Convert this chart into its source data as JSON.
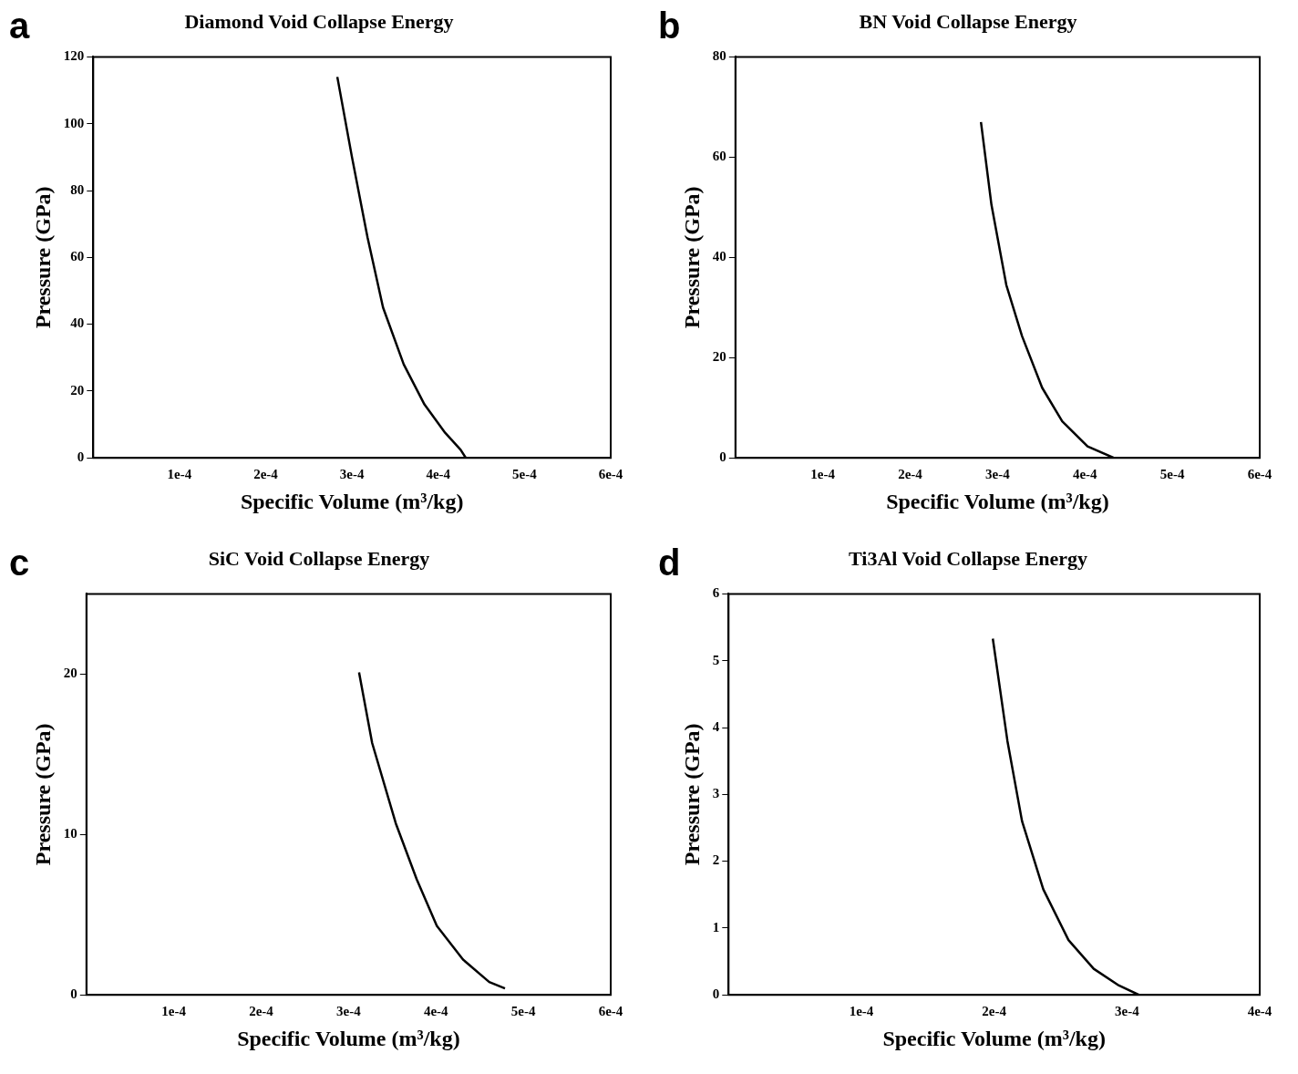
{
  "chart_data": [
    {
      "type": "line",
      "title": "Diamond Void Collapse Energy",
      "xlabel": "Specific Volume (m³/kg)",
      "ylabel": "Pressure (GPa)",
      "annotations": [
        "a"
      ],
      "grid": false,
      "legend": false,
      "marker": "none",
      "line_style": "solid",
      "xlim": [
        0,
        0.0006
      ],
      "xticks": [
        {
          "value": 0,
          "label": null
        },
        {
          "value": 0.0001,
          "label": "1e-4"
        },
        {
          "value": 0.0002,
          "label": "2e-4"
        },
        {
          "value": 0.0003,
          "label": "3e-4"
        },
        {
          "value": 0.0004,
          "label": "4e-4"
        },
        {
          "value": 0.0005,
          "label": "5e-4"
        },
        {
          "value": 0.0006,
          "label": "6e-4"
        }
      ],
      "ylim": [
        0,
        120
      ],
      "yticks": [
        0,
        20,
        40,
        60,
        80,
        100,
        120
      ],
      "series": [
        {
          "color": "#000000",
          "x": [
            0.000283,
            0.0003,
            0.000318,
            0.000336,
            0.00036,
            0.000384,
            0.000408,
            0.000426,
            0.000432
          ],
          "values": [
            114,
            90,
            66,
            45,
            28,
            16,
            7.5,
            2.4,
            0
          ]
        }
      ]
    },
    {
      "type": "line",
      "title": "BN Void Collapse Energy",
      "xlabel": "Specific Volume (m³/kg)",
      "ylabel": "Pressure (GPa)",
      "annotations": [
        "b"
      ],
      "grid": false,
      "legend": false,
      "marker": "none",
      "line_style": "solid",
      "xlim": [
        0,
        0.0006
      ],
      "xticks": [
        {
          "value": 0,
          "label": null
        },
        {
          "value": 0.0001,
          "label": "1e-4"
        },
        {
          "value": 0.0002,
          "label": "2e-4"
        },
        {
          "value": 0.0003,
          "label": "3e-4"
        },
        {
          "value": 0.0004,
          "label": "4e-4"
        },
        {
          "value": 0.0005,
          "label": "5e-4"
        },
        {
          "value": 0.0006,
          "label": "6e-4"
        }
      ],
      "ylim": [
        0,
        80
      ],
      "yticks": [
        0,
        20,
        40,
        60,
        80
      ],
      "series": [
        {
          "color": "#000000",
          "x": [
            0.000281,
            0.000293,
            0.00031,
            0.000328,
            0.000351,
            0.000374,
            0.000403,
            0.000433
          ],
          "values": [
            67,
            50.5,
            34.5,
            24.3,
            14,
            7.3,
            2.3,
            0
          ]
        }
      ]
    },
    {
      "type": "line",
      "title": "SiC Void Collapse Energy",
      "xlabel": "Specific Volume (m³/kg)",
      "ylabel": "Pressure (GPa)",
      "annotations": [
        "c"
      ],
      "grid": false,
      "legend": false,
      "marker": "none",
      "line_style": "solid",
      "xlim": [
        0,
        0.0006
      ],
      "xticks": [
        {
          "value": 0,
          "label": null
        },
        {
          "value": 0.0001,
          "label": "1e-4"
        },
        {
          "value": 0.0002,
          "label": "2e-4"
        },
        {
          "value": 0.0003,
          "label": "3e-4"
        },
        {
          "value": 0.0004,
          "label": "4e-4"
        },
        {
          "value": 0.0005,
          "label": "5e-4"
        },
        {
          "value": 0.0006,
          "label": "6e-4"
        }
      ],
      "ylim": [
        0,
        25
      ],
      "yticks": [
        0,
        10,
        20
      ],
      "series": [
        {
          "color": "#000000",
          "x": [
            0.000312,
            0.000327,
            0.000354,
            0.000378,
            0.000401,
            0.000431,
            0.000461,
            0.000479
          ],
          "values": [
            20.1,
            15.7,
            10.7,
            7.2,
            4.3,
            2.2,
            0.8,
            0.4
          ]
        }
      ]
    },
    {
      "type": "line",
      "title": "Ti3Al Void Collapse Energy",
      "xlabel": "Specific Volume (m³/kg)",
      "ylabel": "Pressure (GPa)",
      "annotations": [
        "d"
      ],
      "grid": false,
      "legend": false,
      "marker": "none",
      "line_style": "solid",
      "xlim": [
        0,
        0.0004
      ],
      "xticks": [
        {
          "value": 0,
          "label": null
        },
        {
          "value": 0.0001,
          "label": "1e-4"
        },
        {
          "value": 0.0002,
          "label": "2e-4"
        },
        {
          "value": 0.0003,
          "label": "3e-4"
        },
        {
          "value": 0.0004,
          "label": "4e-4"
        }
      ],
      "ylim": [
        0,
        6
      ],
      "yticks": [
        0,
        1,
        2,
        3,
        4,
        5,
        6
      ],
      "series": [
        {
          "color": "#000000",
          "x": [
            0.000199,
            0.00021,
            0.000221,
            0.000237,
            0.000256,
            0.000275,
            0.000294,
            0.000309
          ],
          "values": [
            5.33,
            3.8,
            2.6,
            1.58,
            0.82,
            0.39,
            0.14,
            0
          ]
        }
      ]
    }
  ]
}
